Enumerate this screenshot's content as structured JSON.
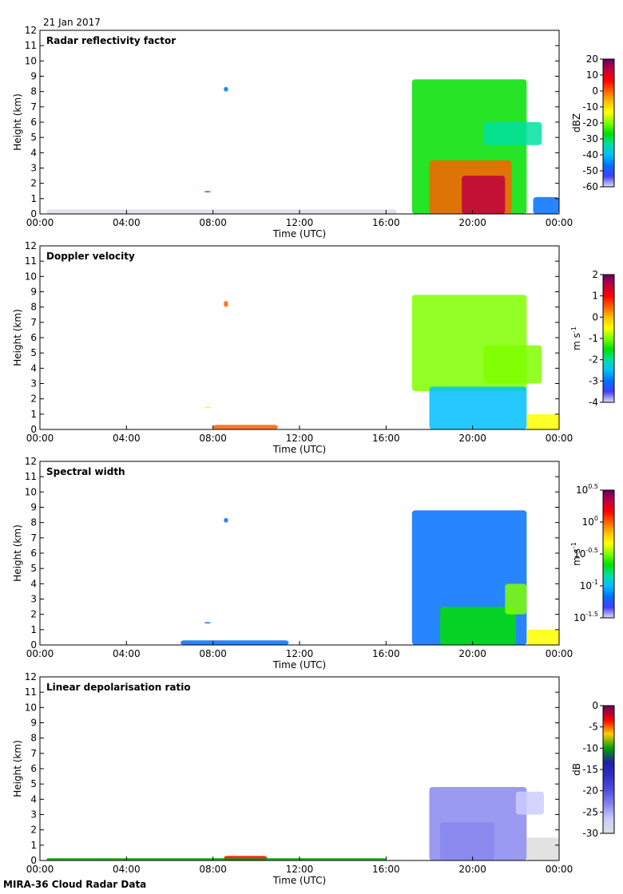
{
  "date_label": "21 Jan 2017",
  "footer": "MIRA-36 Cloud Radar Data",
  "colors": {
    "rainbow": [
      "#ddddee",
      "#4040ff",
      "#0070ff",
      "#00c0ff",
      "#00e0a0",
      "#00e000",
      "#80ff00",
      "#ffff00",
      "#ffc000",
      "#ff6000",
      "#ff0000",
      "#c00040",
      "#600060"
    ],
    "ldr": [
      "#dddddd",
      "#ccccff",
      "#8888ee",
      "#5050dd",
      "#3030cc",
      "#2020a0",
      "#00a000",
      "#ffcc00",
      "#ff0000",
      "#600060"
    ]
  },
  "chart_data": [
    {
      "type": "heatmap",
      "title": "Radar reflectivity factor",
      "xlabel": "Time (UTC)",
      "ylabel": "Height (km)",
      "xticks": [
        "00:00",
        "04:00",
        "08:00",
        "12:00",
        "16:00",
        "20:00",
        "00:00"
      ],
      "xlim": [
        0,
        24
      ],
      "ylim": [
        0,
        12
      ],
      "yticks": [
        "0",
        "1",
        "2",
        "3",
        "4",
        "5",
        "6",
        "7",
        "8",
        "9",
        "10",
        "11",
        "12"
      ],
      "colorbar": {
        "label": "dBZ",
        "ticks": [
          "20",
          "10",
          "0",
          "-10",
          "-20",
          "-30",
          "-40",
          "-50",
          "-60"
        ],
        "range": [
          -60,
          20
        ]
      },
      "blobs": [
        {
          "x": [
            17.2,
            22.5
          ],
          "y": [
            0.0,
            8.8
          ],
          "value": -25
        },
        {
          "x": [
            20.5,
            23.2
          ],
          "y": [
            4.5,
            6.0
          ],
          "value": -35
        },
        {
          "x": [
            22.8,
            24.0
          ],
          "y": [
            0.0,
            1.1
          ],
          "value": -45
        },
        {
          "x": [
            18.0,
            21.8
          ],
          "y": [
            0.0,
            3.5
          ],
          "value": 0
        },
        {
          "x": [
            19.5,
            21.5
          ],
          "y": [
            0.0,
            2.5
          ],
          "value": 10
        },
        {
          "x": [
            8.5,
            8.7
          ],
          "y": [
            8.0,
            8.3
          ],
          "value": -45
        },
        {
          "x": [
            7.6,
            7.9
          ],
          "y": [
            1.4,
            1.5
          ],
          "value": -45
        },
        {
          "x": [
            0.3,
            16.5
          ],
          "y": [
            0.0,
            0.3
          ],
          "value": -58
        }
      ]
    },
    {
      "type": "heatmap",
      "title": "Doppler velocity",
      "xlabel": "Time (UTC)",
      "ylabel": "Height (km)",
      "xticks": [
        "00:00",
        "04:00",
        "08:00",
        "12:00",
        "16:00",
        "20:00",
        "00:00"
      ],
      "xlim": [
        0,
        24
      ],
      "ylim": [
        0,
        12
      ],
      "yticks": [
        "0",
        "1",
        "2",
        "3",
        "4",
        "5",
        "6",
        "7",
        "8",
        "9",
        "10",
        "11",
        "12"
      ],
      "colorbar": {
        "label": "m s-1",
        "label_main": "m s",
        "label_sup": "-1",
        "ticks": [
          "2",
          "1",
          "0",
          "-1",
          "-2",
          "-3",
          "-4"
        ],
        "range": [
          -4,
          2
        ]
      },
      "blobs": [
        {
          "x": [
            17.2,
            22.5
          ],
          "y": [
            2.5,
            8.8
          ],
          "value": -1.2
        },
        {
          "x": [
            18.0,
            22.5
          ],
          "y": [
            0.0,
            2.8
          ],
          "value": -2.3
        },
        {
          "x": [
            20.5,
            23.2
          ],
          "y": [
            3.0,
            5.5
          ],
          "value": -0.8
        },
        {
          "x": [
            22.5,
            24.0
          ],
          "y": [
            0.0,
            1.0
          ],
          "value": -0.5
        },
        {
          "x": [
            8.5,
            8.7
          ],
          "y": [
            8.0,
            8.4
          ],
          "value": 0.5
        },
        {
          "x": [
            7.6,
            7.9
          ],
          "y": [
            1.4,
            1.5
          ],
          "value": -0.5
        },
        {
          "x": [
            8.0,
            11.0
          ],
          "y": [
            0.0,
            0.3
          ],
          "value": 0.5
        }
      ]
    },
    {
      "type": "heatmap",
      "title": "Spectral width",
      "xlabel": "Time (UTC)",
      "ylabel": "Height (km)",
      "xticks": [
        "00:00",
        "04:00",
        "08:00",
        "12:00",
        "16:00",
        "20:00",
        "00:00"
      ],
      "xlim": [
        0,
        24
      ],
      "ylim": [
        0,
        12
      ],
      "yticks": [
        "0",
        "1",
        "2",
        "3",
        "4",
        "5",
        "6",
        "7",
        "8",
        "9",
        "10",
        "11",
        "12"
      ],
      "colorbar": {
        "label": "m s-1",
        "label_main": "m s",
        "label_sup": "-1",
        "ticks": [
          {
            "base": "10",
            "exp": "0.5"
          },
          {
            "base": "10",
            "exp": "0"
          },
          {
            "base": "10",
            "exp": "-0.5"
          },
          {
            "base": "10",
            "exp": "-1"
          },
          {
            "base": "10",
            "exp": "-1.5"
          }
        ],
        "range": [
          -1.5,
          0.5
        ]
      },
      "blobs": [
        {
          "x": [
            17.2,
            22.5
          ],
          "y": [
            0.0,
            8.8
          ],
          "value": -1.1
        },
        {
          "x": [
            18.5,
            22.0
          ],
          "y": [
            0.0,
            2.5
          ],
          "value": -0.6
        },
        {
          "x": [
            21.5,
            22.5
          ],
          "y": [
            2.0,
            4.0
          ],
          "value": -0.5
        },
        {
          "x": [
            22.5,
            24.0
          ],
          "y": [
            0.0,
            1.0
          ],
          "value": -0.4
        },
        {
          "x": [
            8.5,
            8.7
          ],
          "y": [
            8.0,
            8.3
          ],
          "value": -1.1
        },
        {
          "x": [
            7.6,
            7.9
          ],
          "y": [
            1.4,
            1.5
          ],
          "value": -1.1
        },
        {
          "x": [
            6.5,
            11.5
          ],
          "y": [
            0.0,
            0.3
          ],
          "value": -1.2
        }
      ]
    },
    {
      "type": "heatmap",
      "title": "Linear depolarisation ratio",
      "xlabel": "Time (UTC)",
      "ylabel": "Height (km)",
      "xticks": [
        "00:00",
        "04:00",
        "08:00",
        "12:00",
        "16:00",
        "20:00",
        "00:00"
      ],
      "xlim": [
        0,
        24
      ],
      "ylim": [
        0,
        12
      ],
      "yticks": [
        "0",
        "1",
        "2",
        "3",
        "4",
        "5",
        "6",
        "7",
        "8",
        "9",
        "10",
        "11",
        "12"
      ],
      "colorbar": {
        "label": "dB",
        "ticks": [
          "0",
          "-5",
          "-10",
          "-15",
          "-20",
          "-25",
          "-30"
        ],
        "range": [
          -30,
          0
        ]
      },
      "blobs": [
        {
          "x": [
            18.0,
            22.5
          ],
          "y": [
            0.0,
            4.8
          ],
          "value": -25
        },
        {
          "x": [
            18.5,
            21.0
          ],
          "y": [
            0.0,
            2.5
          ],
          "value": -22
        },
        {
          "x": [
            22.5,
            24.0
          ],
          "y": [
            0.0,
            1.5
          ],
          "value": -30
        },
        {
          "x": [
            22.0,
            23.3
          ],
          "y": [
            3.0,
            4.5
          ],
          "value": -26
        },
        {
          "x": [
            8.5,
            10.5
          ],
          "y": [
            0.0,
            0.3
          ],
          "value": -3
        },
        {
          "x": [
            0.3,
            16.0
          ],
          "y": [
            0.0,
            0.15
          ],
          "value": -10
        }
      ]
    }
  ]
}
